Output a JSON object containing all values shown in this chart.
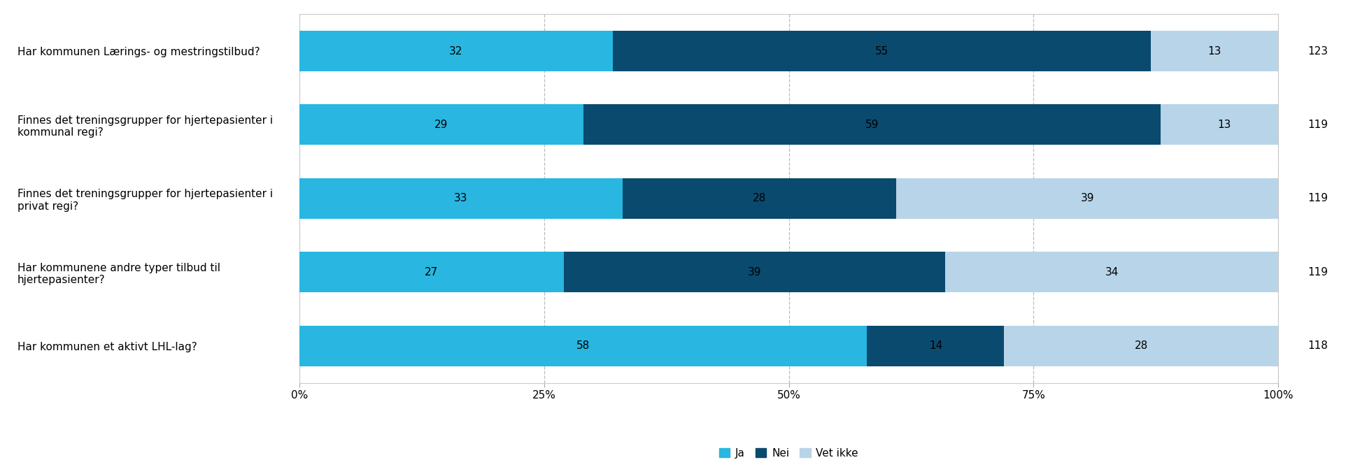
{
  "categories": [
    "Har kommunen Lærings- og mestringstilbud?",
    "Finnes det treningsgrupper for hjertepasienter i\nkommunal regi?",
    "Finnes det treningsgrupper for hjertepasienter i\nprivat regi?",
    "Har kommunene andre typer tilbud til\nhjertepasienter?",
    "Har kommunen et aktivt LHL-lag?"
  ],
  "ja": [
    32,
    29,
    33,
    27,
    58
  ],
  "nei": [
    55,
    59,
    28,
    39,
    14
  ],
  "vet_ikke": [
    13,
    13,
    39,
    34,
    28
  ],
  "totals": [
    123,
    119,
    119,
    119,
    118
  ],
  "color_ja": "#29b6e0",
  "color_nei": "#0a4a6e",
  "color_vet_ikke": "#b8d4e8",
  "bar_height": 0.55,
  "xlim": [
    0,
    100
  ],
  "xticks": [
    0,
    25,
    50,
    75,
    100
  ],
  "xticklabels": [
    "0%",
    "25%",
    "50%",
    "75%",
    "100%"
  ],
  "legend_labels": [
    "Ja",
    "Nei",
    "Vet ikke"
  ],
  "label_fontsize": 11,
  "tick_fontsize": 11,
  "total_fontsize": 11,
  "background_color": "#ffffff",
  "grid_color": "#bbbbbb"
}
